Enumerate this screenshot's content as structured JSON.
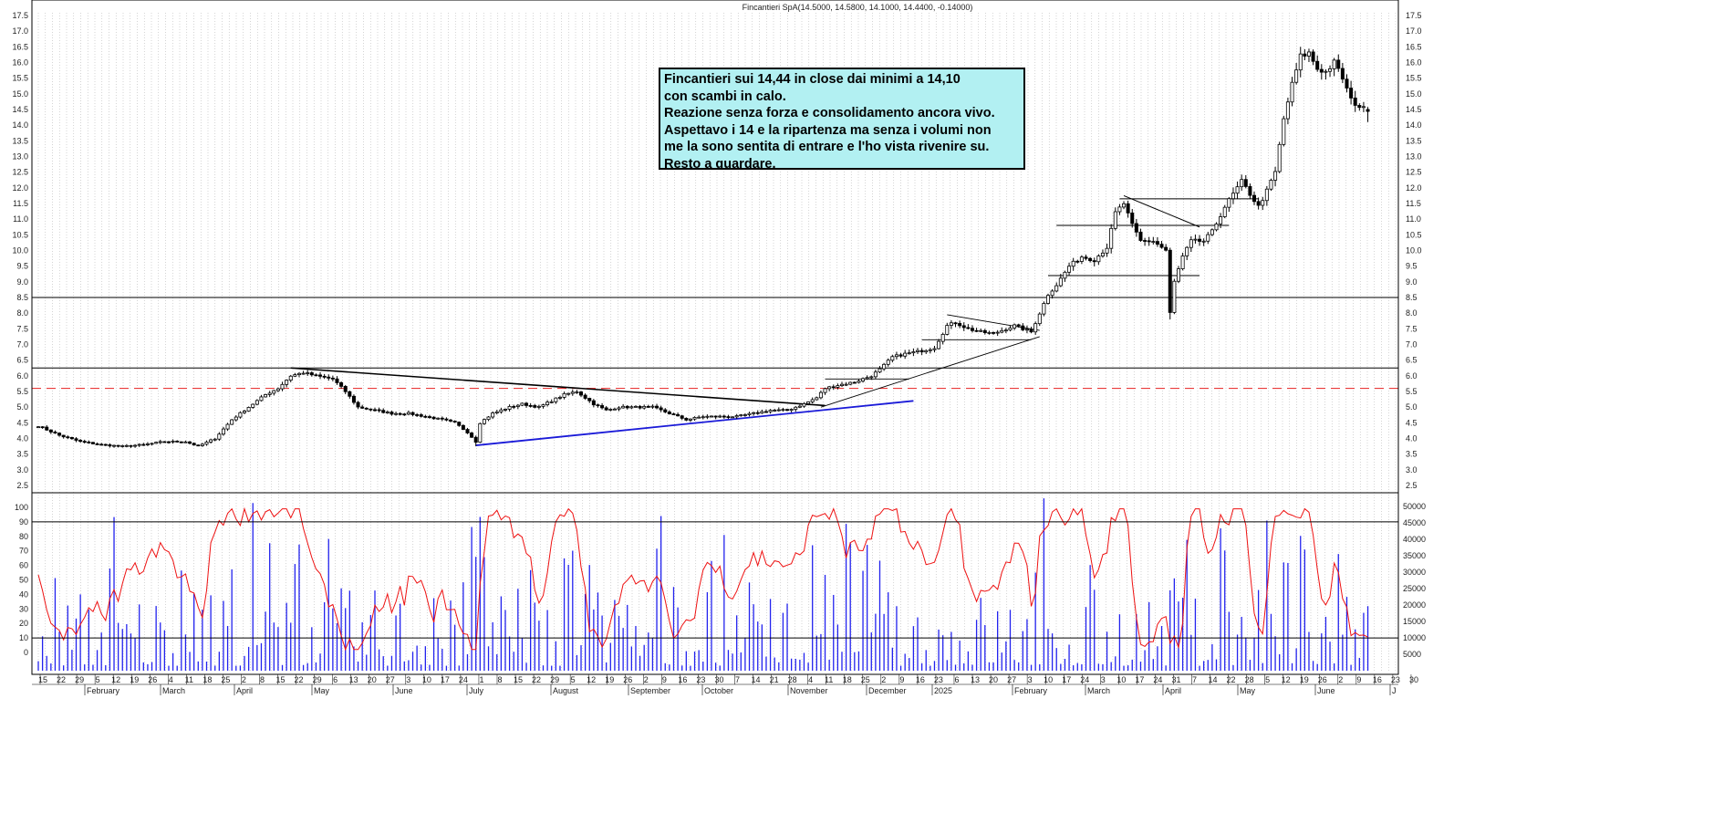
{
  "title": "Fincantieri SpA(14.5000, 14.5800, 14.1000, 14.4400, -0.14000)",
  "note_lines": [
    "Fincantieri sui 14,44 in close dai minimi a 14,10",
    "con scambi in calo.",
    "Reazione senza forza e consolidamento ancora vivo.",
    "Aspettavo i 14 e la ripartenza ma senza i volumi non",
    "me la sono sentita di entrare e l'ho vista rivenire su.",
    "Resto a guardare."
  ],
  "colors": {
    "candle": "#000000",
    "volume": "#2222ee",
    "oscillator": "#ee1111",
    "support_line": "#1a1ad8",
    "dashed_level": "#e82020",
    "grid": "#b8b8b8"
  },
  "chart_data": [
    {
      "type": "candlestick",
      "title": "Fincantieri SpA(14.5000, 14.5800, 14.1000, 14.4400, -0.14000)",
      "ylim": [
        2.5,
        17.5
      ],
      "y_ticks": [
        "2.5",
        "3.0",
        "3.5",
        "4.0",
        "4.5",
        "5.0",
        "5.5",
        "6.0",
        "6.5",
        "7.0",
        "7.5",
        "8.0",
        "8.5",
        "9.0",
        "9.5",
        "10.0",
        "10.5",
        "11.0",
        "11.5",
        "12.0",
        "12.5",
        "13.0",
        "13.5",
        "14.0",
        "14.5",
        "15.0",
        "15.5",
        "16.0",
        "16.5",
        "17.0",
        "17.5"
      ],
      "last": {
        "open": 14.5,
        "high": 14.58,
        "low": 14.1,
        "close": 14.44,
        "change": -0.14
      },
      "anchors": [
        [
          0,
          4.4
        ],
        [
          5,
          4.1
        ],
        [
          10,
          3.9
        ],
        [
          15,
          3.8
        ],
        [
          20,
          3.75
        ],
        [
          25,
          3.8
        ],
        [
          30,
          3.9
        ],
        [
          35,
          3.9
        ],
        [
          38,
          3.75
        ],
        [
          42,
          4.0
        ],
        [
          46,
          4.6
        ],
        [
          50,
          5.0
        ],
        [
          54,
          5.4
        ],
        [
          57,
          5.6
        ],
        [
          60,
          6.0
        ],
        [
          63,
          6.1
        ],
        [
          66,
          6.0
        ],
        [
          70,
          5.9
        ],
        [
          73,
          5.5
        ],
        [
          76,
          5.0
        ],
        [
          80,
          4.9
        ],
        [
          84,
          4.8
        ],
        [
          88,
          4.8
        ],
        [
          92,
          4.7
        ],
        [
          96,
          4.6
        ],
        [
          99,
          4.5
        ],
        [
          102,
          4.2
        ],
        [
          104,
          3.9
        ],
        [
          105,
          4.5
        ],
        [
          108,
          4.8
        ],
        [
          112,
          5.0
        ],
        [
          115,
          5.1
        ],
        [
          119,
          5.0
        ],
        [
          122,
          5.2
        ],
        [
          125,
          5.4
        ],
        [
          128,
          5.5
        ],
        [
          132,
          5.1
        ],
        [
          135,
          4.9
        ],
        [
          138,
          5.0
        ],
        [
          142,
          5.0
        ],
        [
          146,
          5.0
        ],
        [
          150,
          4.8
        ],
        [
          154,
          4.6
        ],
        [
          158,
          4.7
        ],
        [
          162,
          4.7
        ],
        [
          166,
          4.7
        ],
        [
          170,
          4.8
        ],
        [
          174,
          4.9
        ],
        [
          178,
          4.9
        ],
        [
          182,
          5.1
        ],
        [
          185,
          5.3
        ],
        [
          187,
          5.6
        ],
        [
          190,
          5.7
        ],
        [
          194,
          5.8
        ],
        [
          198,
          6.0
        ],
        [
          200,
          6.2
        ],
        [
          203,
          6.6
        ],
        [
          206,
          6.7
        ],
        [
          210,
          6.8
        ],
        [
          213,
          6.9
        ],
        [
          216,
          7.6
        ],
        [
          218,
          7.7
        ],
        [
          221,
          7.5
        ],
        [
          224,
          7.4
        ],
        [
          227,
          7.35
        ],
        [
          230,
          7.5
        ],
        [
          232,
          7.6
        ],
        [
          234,
          7.5
        ],
        [
          236,
          7.4
        ],
        [
          238,
          8.0
        ],
        [
          240,
          8.6
        ],
        [
          242,
          8.9
        ],
        [
          245,
          9.5
        ],
        [
          248,
          9.8
        ],
        [
          251,
          9.7
        ],
        [
          254,
          10.1
        ],
        [
          256,
          11.2
        ],
        [
          258,
          11.5
        ],
        [
          260,
          10.8
        ],
        [
          262,
          10.3
        ],
        [
          265,
          10.3
        ],
        [
          268,
          10.0
        ],
        [
          269,
          8.0
        ],
        [
          270,
          9.0
        ],
        [
          272,
          9.8
        ],
        [
          274,
          10.3
        ],
        [
          277,
          10.3
        ],
        [
          279,
          10.6
        ],
        [
          282,
          11.4
        ],
        [
          284,
          11.8
        ],
        [
          286,
          12.2
        ],
        [
          288,
          11.8
        ],
        [
          290,
          11.4
        ],
        [
          292,
          11.9
        ],
        [
          294,
          12.5
        ],
        [
          296,
          14.2
        ],
        [
          298,
          15.3
        ],
        [
          300,
          16.2
        ],
        [
          302,
          16.3
        ],
        [
          304,
          15.8
        ],
        [
          306,
          15.7
        ],
        [
          308,
          16.0
        ],
        [
          310,
          15.5
        ],
        [
          312,
          14.8
        ],
        [
          314,
          14.6
        ],
        [
          316,
          14.44
        ]
      ],
      "volume_ylim": [
        0,
        50000
      ],
      "volume_ticks": [
        "5000",
        "10000",
        "15000",
        "20000",
        "25000",
        "30000",
        "35000",
        "40000",
        "45000",
        "50000"
      ],
      "oscillator_ylim": [
        0,
        100
      ],
      "oscillator_ticks": [
        "0",
        "10",
        "20",
        "30",
        "40",
        "50",
        "60",
        "70",
        "80",
        "90",
        "100"
      ],
      "oscillator_levels": [
        10,
        90
      ],
      "horizontal_levels": [
        8.5,
        6.25
      ],
      "dashed_level": 5.6,
      "x_day_ticks": [
        "15",
        "22",
        "29",
        "5",
        "12",
        "19",
        "26",
        "4",
        "11",
        "18",
        "25",
        "2",
        "8",
        "15",
        "22",
        "29",
        "6",
        "13",
        "20",
        "27",
        "3",
        "10",
        "17",
        "24",
        "1",
        "8",
        "15",
        "22",
        "29",
        "5",
        "12",
        "19",
        "26",
        "2",
        "9",
        "16",
        "23",
        "30",
        "7",
        "14",
        "21",
        "28",
        "4",
        "11",
        "18",
        "25",
        "2",
        "9",
        "16",
        "23",
        "6",
        "13",
        "20",
        "27",
        "3",
        "10",
        "17",
        "24",
        "3",
        "10",
        "17",
        "24",
        "31",
        "7",
        "14",
        "22",
        "28",
        "5",
        "12",
        "19",
        "26",
        "2",
        "9",
        "16",
        "23",
        "30"
      ],
      "x_month_ticks": [
        "February",
        "March",
        "April",
        "May",
        "June",
        "July",
        "August",
        "September",
        "October",
        "November",
        "December",
        "2025",
        "February",
        "March",
        "April",
        "May",
        "June",
        "J"
      ]
    }
  ]
}
